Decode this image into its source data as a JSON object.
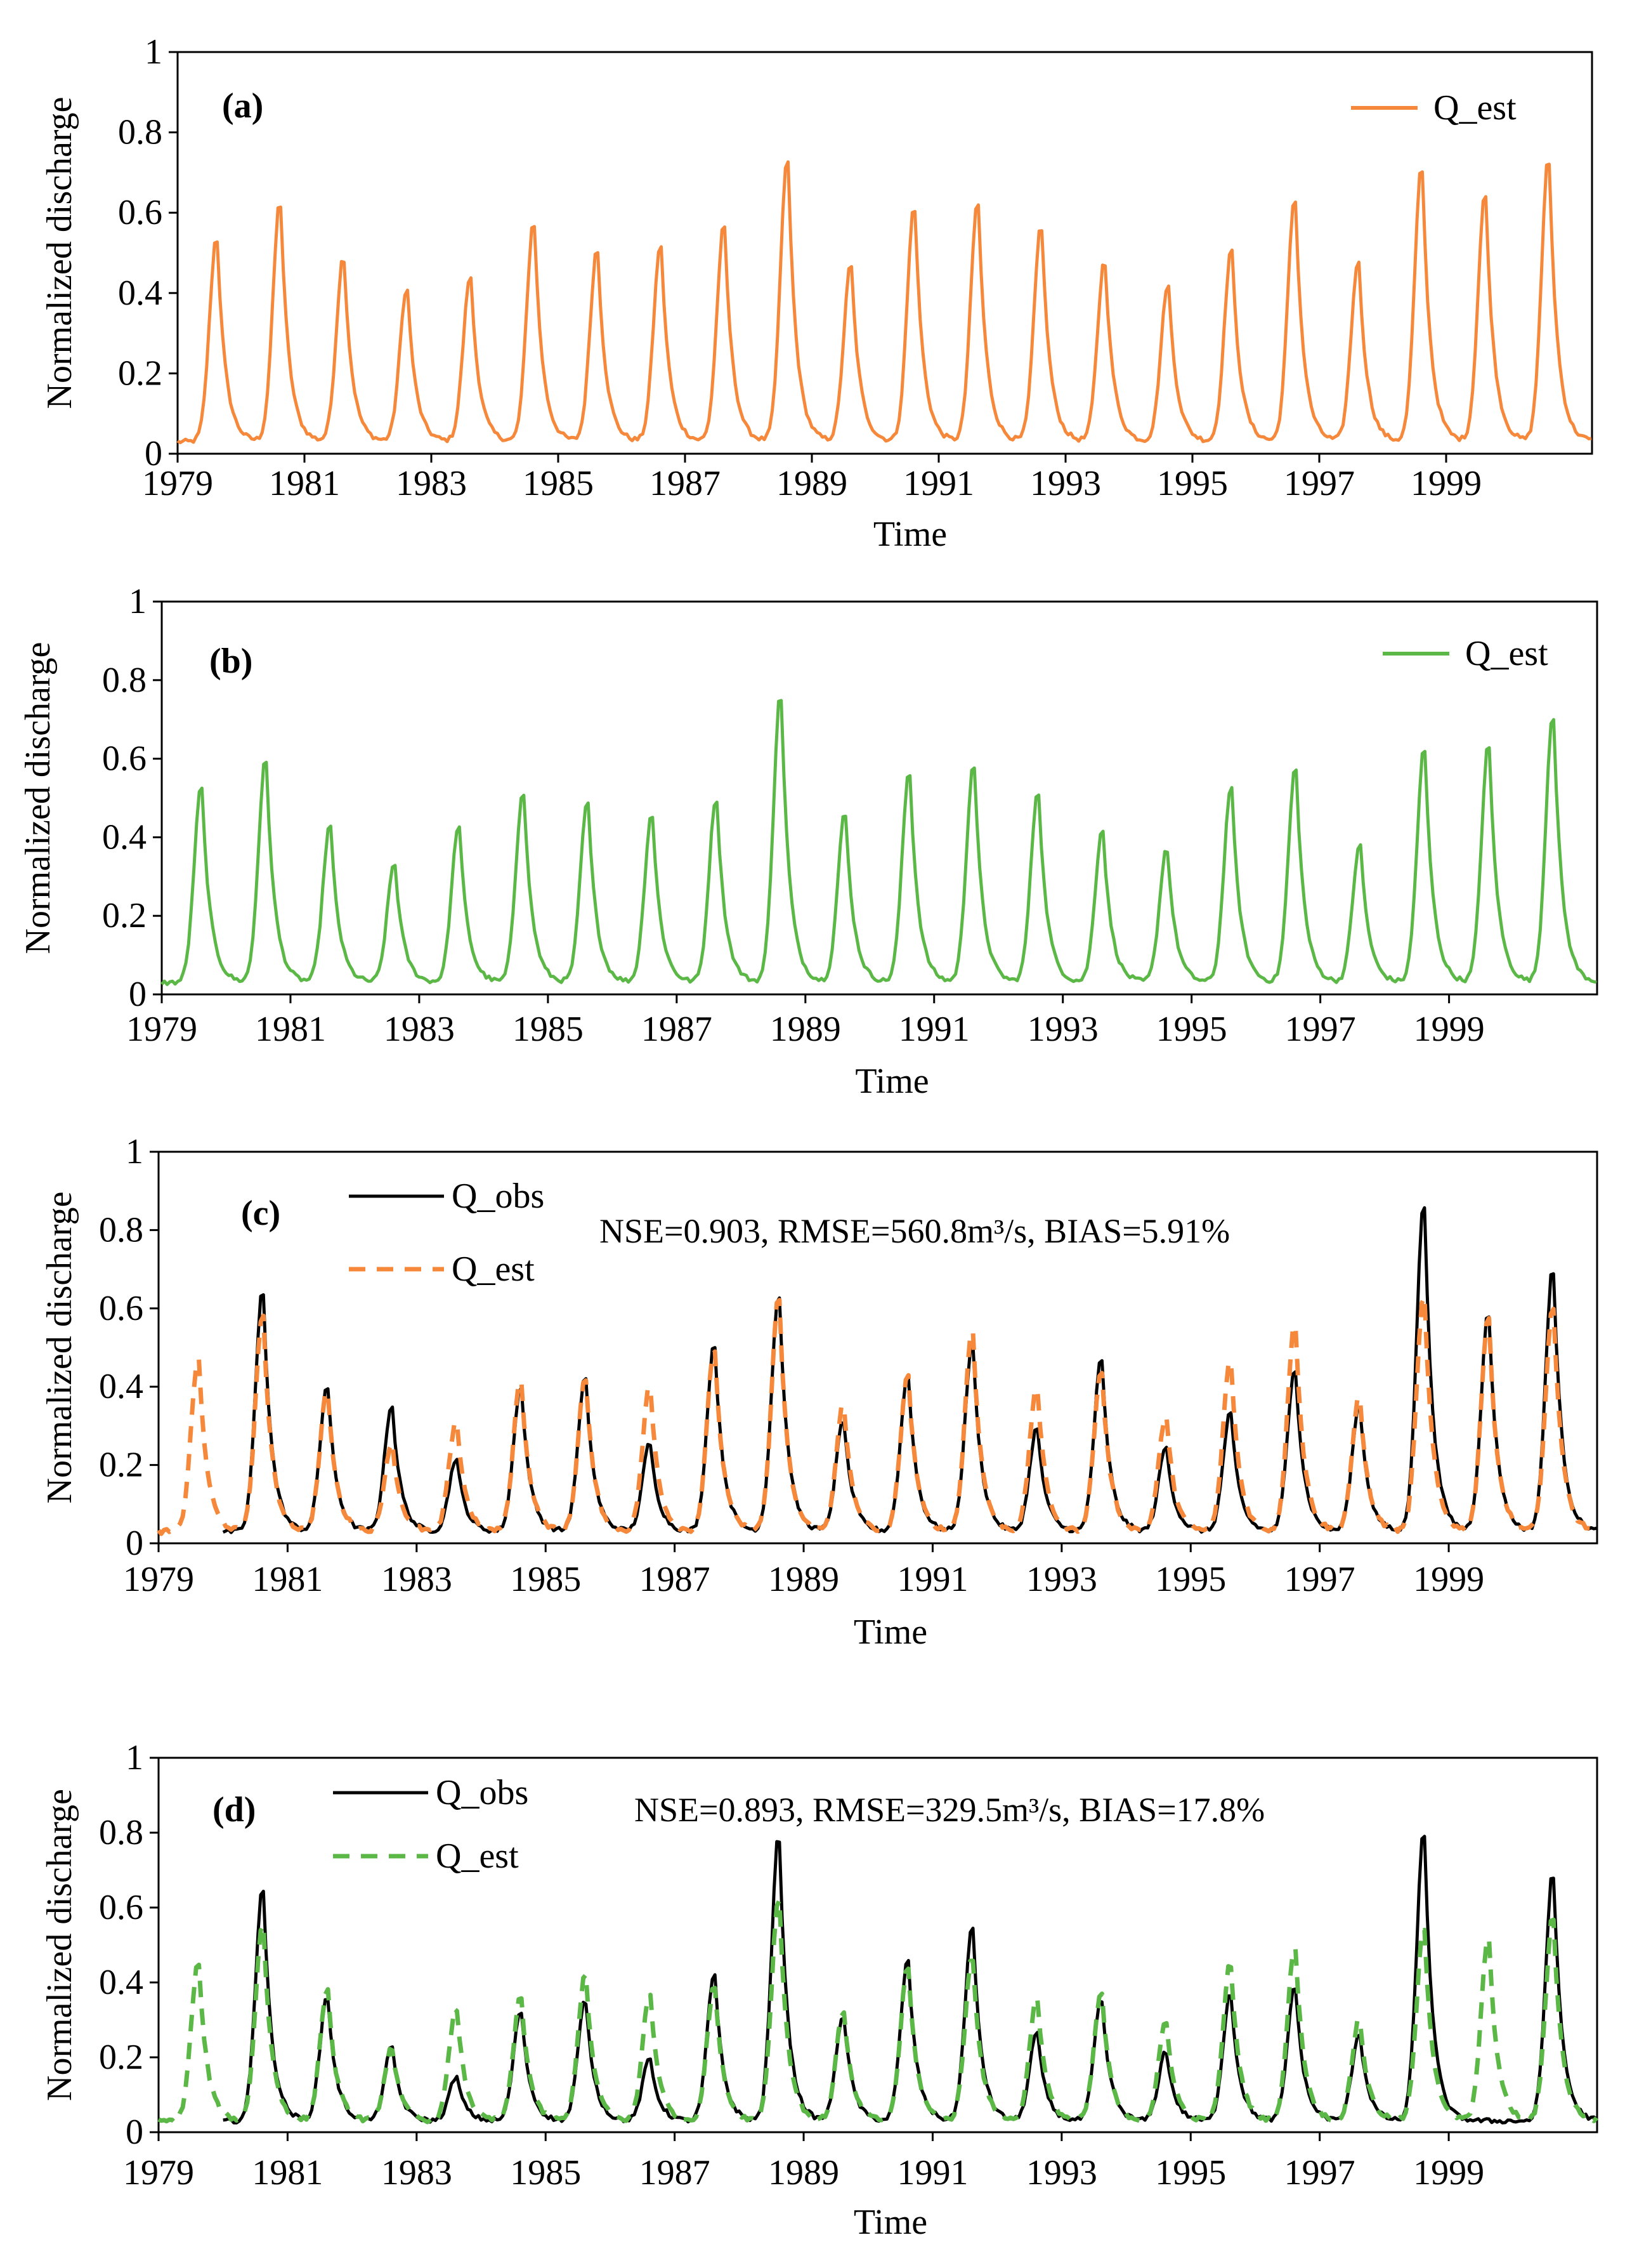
{
  "colors": {
    "orange": "#F5883A",
    "green": "#5BB847",
    "black": "#000000"
  },
  "chart_data": [
    {
      "type": "line",
      "panel_label": "(a)",
      "xlabel": "Time",
      "ylabel": "Normalized discharge",
      "xlim": [
        1979,
        2001.3
      ],
      "ylim": [
        0,
        1
      ],
      "x_tick_labels": [
        "1979",
        "1981",
        "1983",
        "1985",
        "1987",
        "1989",
        "1991",
        "1993",
        "1995",
        "1997",
        "1999"
      ],
      "y_tick_labels": [
        "0",
        "0.2",
        "0.4",
        "0.6",
        "0.8",
        "1"
      ],
      "series": [
        {
          "name": "Q_est",
          "color": "#F5883A",
          "dash": false,
          "peaks": [
            0.55,
            0.64,
            0.5,
            0.42,
            0.45,
            0.59,
            0.52,
            0.53,
            0.58,
            0.75,
            0.48,
            0.63,
            0.64,
            0.58,
            0.49,
            0.43,
            0.52,
            0.65,
            0.49,
            0.73,
            0.66,
            0.75
          ],
          "base": 0.03,
          "start_year": 1979
        }
      ],
      "annotation": ""
    },
    {
      "type": "line",
      "panel_label": "(b)",
      "xlabel": "Time",
      "ylabel": "Normalized discharge",
      "xlim": [
        1979,
        2001.3
      ],
      "ylim": [
        0,
        1
      ],
      "x_tick_labels": [
        "1979",
        "1981",
        "1983",
        "1985",
        "1987",
        "1989",
        "1991",
        "1993",
        "1995",
        "1997",
        "1999"
      ],
      "y_tick_labels": [
        "0",
        "0.2",
        "0.4",
        "0.6",
        "0.8",
        "1"
      ],
      "series": [
        {
          "name": "Q_est",
          "color": "#5BB847",
          "dash": false,
          "peaks": [
            0.54,
            0.61,
            0.44,
            0.34,
            0.44,
            0.53,
            0.5,
            0.47,
            0.51,
            0.78,
            0.47,
            0.58,
            0.6,
            0.53,
            0.43,
            0.38,
            0.54,
            0.59,
            0.39,
            0.64,
            0.65,
            0.73
          ],
          "base": 0.03,
          "start_year": 1979
        }
      ],
      "annotation": ""
    },
    {
      "type": "line",
      "panel_label": "(c)",
      "xlabel": "Time",
      "ylabel": "Normalized discharge",
      "xlim": [
        1979,
        2001.3
      ],
      "ylim": [
        0,
        1
      ],
      "x_tick_labels": [
        "1979",
        "1981",
        "1983",
        "1985",
        "1987",
        "1989",
        "1991",
        "1993",
        "1995",
        "1997",
        "1999"
      ],
      "y_tick_labels": [
        "0",
        "0.2",
        "0.4",
        "0.6",
        "0.8",
        "1"
      ],
      "series": [
        {
          "name": "Q_obs",
          "color": "#000000",
          "dash": false,
          "peaks": [
            null,
            0.66,
            0.41,
            0.36,
            0.22,
            0.41,
            0.43,
            0.26,
            0.52,
            0.65,
            0.32,
            0.44,
            0.52,
            0.3,
            0.48,
            0.25,
            0.34,
            0.46,
            0.36,
            0.89,
            0.6,
            0.72
          ],
          "base": 0.03,
          "start_year": 1980
        },
        {
          "name": "Q_est",
          "color": "#F5883A",
          "dash": true,
          "peaks": [
            0.48,
            0.6,
            0.4,
            0.26,
            0.32,
            0.43,
            0.43,
            0.41,
            0.51,
            0.64,
            0.36,
            0.44,
            0.56,
            0.41,
            0.45,
            0.33,
            0.48,
            0.58,
            0.38,
            0.65,
            0.59,
            0.62
          ],
          "base": 0.03,
          "start_year": 1979
        }
      ],
      "annotation": "NSE=0.903, RMSE=560.8m³/s, BIAS=5.91%"
    },
    {
      "type": "line",
      "panel_label": "(d)",
      "xlabel": "Time",
      "ylabel": "Normalized discharge",
      "xlim": [
        1979,
        2001.3
      ],
      "ylim": [
        0,
        1
      ],
      "x_tick_labels": [
        "1979",
        "1981",
        "1983",
        "1985",
        "1987",
        "1989",
        "1991",
        "1993",
        "1995",
        "1997",
        "1999"
      ],
      "y_tick_labels": [
        "0",
        "0.2",
        "0.4",
        "0.6",
        "0.8",
        "1"
      ],
      "series": [
        {
          "name": "Q_obs",
          "color": "#000000",
          "dash": false,
          "peaks": [
            null,
            0.67,
            0.37,
            0.23,
            0.15,
            0.33,
            0.36,
            0.2,
            0.43,
            0.81,
            0.32,
            0.47,
            0.56,
            0.27,
            0.36,
            0.22,
            0.38,
            0.4,
            0.27,
            0.82,
            null,
            0.71
          ],
          "base": 0.03,
          "start_year": 1980
        },
        {
          "name": "Q_est",
          "color": "#5BB847",
          "dash": true,
          "peaks": [
            0.46,
            0.57,
            0.39,
            0.23,
            0.34,
            0.37,
            0.43,
            0.38,
            0.4,
            0.64,
            0.33,
            0.45,
            0.48,
            0.37,
            0.38,
            0.3,
            0.46,
            0.51,
            0.31,
            0.56,
            0.53,
            0.59
          ],
          "base": 0.03,
          "start_year": 1979
        }
      ],
      "annotation": "NSE=0.893, RMSE=329.5m³/s, BIAS=17.8%"
    }
  ]
}
